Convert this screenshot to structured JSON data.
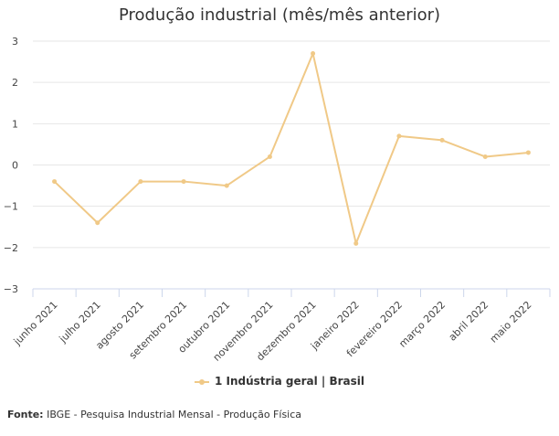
{
  "colors": {
    "series": "#f0c987",
    "grid": "#e6e6e6",
    "axis": "#ccd6eb",
    "text": "#444444"
  },
  "source": {
    "label": "Fonte:",
    "text": "IBGE - Pesquisa Industrial Mensal - Produção Física"
  },
  "chart_data": {
    "type": "line",
    "title": "Produção industrial (mês/mês anterior)",
    "xlabel": "",
    "ylabel": "",
    "ylim": [
      -3,
      3
    ],
    "yticks": [
      "3",
      "2",
      "1",
      "0",
      "−1",
      "−2",
      "−3"
    ],
    "categories": [
      "junho 2021",
      "julho 2021",
      "agosto 2021",
      "setembro 2021",
      "outubro 2021",
      "novembro 2021",
      "dezembro 2021",
      "janeiro 2022",
      "fevereiro 2022",
      "março 2022",
      "abril 2022",
      "maio 2022"
    ],
    "series": [
      {
        "name": "1 Indústria geral | Brasil",
        "values": [
          -0.4,
          -1.4,
          -0.4,
          -0.4,
          -0.5,
          0.2,
          2.7,
          -1.9,
          0.7,
          0.6,
          0.2,
          0.3
        ]
      }
    ],
    "grid": true,
    "legend": "bottom-center"
  }
}
